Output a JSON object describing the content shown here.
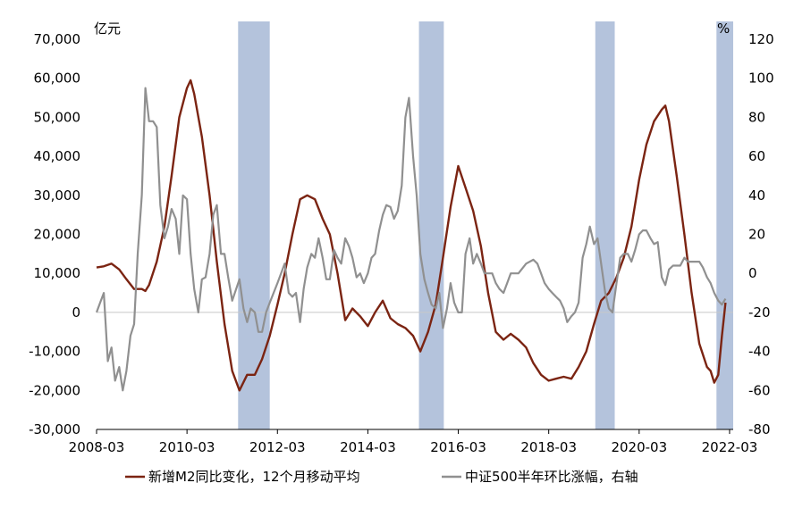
{
  "chart_data": {
    "type": "line",
    "title": "",
    "left_axis": {
      "unit": "亿元",
      "ylim": [
        -30000,
        70000
      ],
      "ticks": [
        70000,
        60000,
        50000,
        40000,
        30000,
        20000,
        10000,
        0,
        -10000,
        -20000,
        -30000
      ],
      "tick_labels": [
        "70,000",
        "60,000",
        "50,000",
        "40,000",
        "30,000",
        "20,000",
        "10,000",
        "0",
        "-10,000",
        "-20,000",
        "-30,000"
      ]
    },
    "right_axis": {
      "unit": "%",
      "ylim": [
        -80,
        120
      ],
      "ticks": [
        120,
        100,
        80,
        60,
        40,
        20,
        0,
        -20,
        -40,
        -60,
        -80
      ],
      "tick_labels": [
        "120",
        "100",
        "80",
        "60",
        "40",
        "20",
        "0",
        "-20",
        "-40",
        "-60",
        "-80"
      ]
    },
    "x_axis": {
      "xlim": [
        2008.17,
        2022.25
      ],
      "ticks": [
        2008.17,
        2010.17,
        2012.17,
        2014.17,
        2016.17,
        2018.17,
        2020.17,
        2022.17
      ],
      "tick_labels": [
        "2008-03",
        "2010-03",
        "2012-03",
        "2014-03",
        "2016-03",
        "2018-03",
        "2020-03",
        "2022-03"
      ]
    },
    "shaded_periods": [
      {
        "start": 2011.3,
        "end": 2012.0
      },
      {
        "start": 2015.3,
        "end": 2015.85
      },
      {
        "start": 2019.2,
        "end": 2019.63
      },
      {
        "start": 2021.88,
        "end": 2022.25
      }
    ],
    "series": [
      {
        "name": "新增M2同比变化，12个月移动平均",
        "axis": "left",
        "color": "#7b2412",
        "points": [
          [
            2008.17,
            11500
          ],
          [
            2008.33,
            11800
          ],
          [
            2008.5,
            12500
          ],
          [
            2008.67,
            11000
          ],
          [
            2008.83,
            8500
          ],
          [
            2009.0,
            6000
          ],
          [
            2009.17,
            6000
          ],
          [
            2009.25,
            5500
          ],
          [
            2009.33,
            7000
          ],
          [
            2009.5,
            13000
          ],
          [
            2009.67,
            22000
          ],
          [
            2009.83,
            35000
          ],
          [
            2010.0,
            50000
          ],
          [
            2010.17,
            57500
          ],
          [
            2010.25,
            59500
          ],
          [
            2010.33,
            56000
          ],
          [
            2010.5,
            45000
          ],
          [
            2010.67,
            30000
          ],
          [
            2010.83,
            13000
          ],
          [
            2011.0,
            -3000
          ],
          [
            2011.17,
            -15000
          ],
          [
            2011.33,
            -20000
          ],
          [
            2011.5,
            -16000
          ],
          [
            2011.67,
            -16000
          ],
          [
            2011.83,
            -12000
          ],
          [
            2012.0,
            -6000
          ],
          [
            2012.17,
            2000
          ],
          [
            2012.33,
            10000
          ],
          [
            2012.5,
            20000
          ],
          [
            2012.67,
            29000
          ],
          [
            2012.83,
            30000
          ],
          [
            2013.0,
            29000
          ],
          [
            2013.17,
            24000
          ],
          [
            2013.33,
            20000
          ],
          [
            2013.5,
            10000
          ],
          [
            2013.67,
            -2000
          ],
          [
            2013.83,
            1000
          ],
          [
            2014.0,
            -1000
          ],
          [
            2014.17,
            -3500
          ],
          [
            2014.33,
            0
          ],
          [
            2014.5,
            3000
          ],
          [
            2014.67,
            -1500
          ],
          [
            2014.83,
            -3000
          ],
          [
            2015.0,
            -4000
          ],
          [
            2015.17,
            -6000
          ],
          [
            2015.33,
            -10000
          ],
          [
            2015.5,
            -5000
          ],
          [
            2015.67,
            2000
          ],
          [
            2015.83,
            14000
          ],
          [
            2016.0,
            27000
          ],
          [
            2016.17,
            37500
          ],
          [
            2016.33,
            32000
          ],
          [
            2016.5,
            26000
          ],
          [
            2016.67,
            17000
          ],
          [
            2016.83,
            5000
          ],
          [
            2017.0,
            -5000
          ],
          [
            2017.17,
            -7000
          ],
          [
            2017.33,
            -5500
          ],
          [
            2017.5,
            -7000
          ],
          [
            2017.67,
            -9000
          ],
          [
            2017.83,
            -13000
          ],
          [
            2018.0,
            -16000
          ],
          [
            2018.17,
            -17500
          ],
          [
            2018.33,
            -17000
          ],
          [
            2018.5,
            -16500
          ],
          [
            2018.67,
            -17000
          ],
          [
            2018.83,
            -14000
          ],
          [
            2019.0,
            -10000
          ],
          [
            2019.17,
            -3000
          ],
          [
            2019.33,
            3000
          ],
          [
            2019.5,
            5000
          ],
          [
            2019.67,
            9000
          ],
          [
            2019.83,
            14000
          ],
          [
            2020.0,
            22000
          ],
          [
            2020.17,
            34000
          ],
          [
            2020.33,
            43000
          ],
          [
            2020.5,
            49000
          ],
          [
            2020.67,
            52000
          ],
          [
            2020.75,
            53000
          ],
          [
            2020.83,
            49000
          ],
          [
            2021.0,
            35000
          ],
          [
            2021.17,
            20000
          ],
          [
            2021.33,
            5000
          ],
          [
            2021.5,
            -8000
          ],
          [
            2021.67,
            -14000
          ],
          [
            2021.75,
            -15000
          ],
          [
            2021.83,
            -18000
          ],
          [
            2021.92,
            -16000
          ],
          [
            2022.0,
            -6000
          ],
          [
            2022.08,
            2500
          ]
        ]
      },
      {
        "name": "中证500半年环比涨幅，右轴",
        "axis": "right",
        "color": "#909090",
        "points": [
          [
            2008.17,
            -20
          ],
          [
            2008.25,
            -15
          ],
          [
            2008.33,
            -10
          ],
          [
            2008.42,
            -45
          ],
          [
            2008.5,
            -38
          ],
          [
            2008.58,
            -55
          ],
          [
            2008.67,
            -48
          ],
          [
            2008.75,
            -60
          ],
          [
            2008.83,
            -50
          ],
          [
            2008.92,
            -32
          ],
          [
            2009.0,
            -26
          ],
          [
            2009.08,
            10
          ],
          [
            2009.17,
            40
          ],
          [
            2009.25,
            95
          ],
          [
            2009.33,
            78
          ],
          [
            2009.42,
            78
          ],
          [
            2009.5,
            75
          ],
          [
            2009.58,
            35
          ],
          [
            2009.67,
            18
          ],
          [
            2009.75,
            24
          ],
          [
            2009.83,
            33
          ],
          [
            2009.92,
            28
          ],
          [
            2010.0,
            10
          ],
          [
            2010.08,
            40
          ],
          [
            2010.17,
            38
          ],
          [
            2010.25,
            10
          ],
          [
            2010.33,
            -8
          ],
          [
            2010.42,
            -20
          ],
          [
            2010.5,
            -3
          ],
          [
            2010.58,
            -2
          ],
          [
            2010.67,
            10
          ],
          [
            2010.75,
            30
          ],
          [
            2010.83,
            35
          ],
          [
            2010.92,
            10
          ],
          [
            2011.0,
            10
          ],
          [
            2011.08,
            -2
          ],
          [
            2011.17,
            -14
          ],
          [
            2011.33,
            -3
          ],
          [
            2011.42,
            -18
          ],
          [
            2011.5,
            -25
          ],
          [
            2011.58,
            -18
          ],
          [
            2011.67,
            -20
          ],
          [
            2011.75,
            -30
          ],
          [
            2011.83,
            -30
          ],
          [
            2011.92,
            -20
          ],
          [
            2012.0,
            -15
          ],
          [
            2012.17,
            -5
          ],
          [
            2012.33,
            5
          ],
          [
            2012.42,
            -10
          ],
          [
            2012.5,
            -12
          ],
          [
            2012.58,
            -10
          ],
          [
            2012.67,
            -25
          ],
          [
            2012.75,
            -8
          ],
          [
            2012.83,
            3
          ],
          [
            2012.92,
            10
          ],
          [
            2013.0,
            8
          ],
          [
            2013.08,
            18
          ],
          [
            2013.17,
            8
          ],
          [
            2013.25,
            -3
          ],
          [
            2013.33,
            -3
          ],
          [
            2013.42,
            12
          ],
          [
            2013.5,
            8
          ],
          [
            2013.58,
            5
          ],
          [
            2013.67,
            18
          ],
          [
            2013.75,
            14
          ],
          [
            2013.83,
            8
          ],
          [
            2013.92,
            -2
          ],
          [
            2014.0,
            0
          ],
          [
            2014.08,
            -5
          ],
          [
            2014.17,
            0
          ],
          [
            2014.25,
            8
          ],
          [
            2014.33,
            10
          ],
          [
            2014.42,
            22
          ],
          [
            2014.5,
            30
          ],
          [
            2014.58,
            35
          ],
          [
            2014.67,
            34
          ],
          [
            2014.75,
            28
          ],
          [
            2014.83,
            32
          ],
          [
            2014.92,
            45
          ],
          [
            2015.0,
            80
          ],
          [
            2015.08,
            90
          ],
          [
            2015.17,
            60
          ],
          [
            2015.25,
            40
          ],
          [
            2015.33,
            10
          ],
          [
            2015.42,
            -3
          ],
          [
            2015.5,
            -10
          ],
          [
            2015.58,
            -16
          ],
          [
            2015.67,
            -18
          ],
          [
            2015.75,
            -10
          ],
          [
            2015.83,
            -28
          ],
          [
            2015.92,
            -18
          ],
          [
            2016.0,
            -5
          ],
          [
            2016.08,
            -15
          ],
          [
            2016.17,
            -20
          ],
          [
            2016.25,
            -20
          ],
          [
            2016.33,
            10
          ],
          [
            2016.42,
            18
          ],
          [
            2016.5,
            5
          ],
          [
            2016.58,
            10
          ],
          [
            2016.67,
            5
          ],
          [
            2016.75,
            0
          ],
          [
            2016.83,
            0
          ],
          [
            2016.92,
            0
          ],
          [
            2017.0,
            -5
          ],
          [
            2017.08,
            -8
          ],
          [
            2017.17,
            -10
          ],
          [
            2017.25,
            -5
          ],
          [
            2017.33,
            0
          ],
          [
            2017.5,
            0
          ],
          [
            2017.67,
            5
          ],
          [
            2017.83,
            7
          ],
          [
            2017.92,
            5
          ],
          [
            2018.0,
            0
          ],
          [
            2018.08,
            -5
          ],
          [
            2018.17,
            -8
          ],
          [
            2018.25,
            -10
          ],
          [
            2018.33,
            -12
          ],
          [
            2018.42,
            -14
          ],
          [
            2018.5,
            -18
          ],
          [
            2018.58,
            -25
          ],
          [
            2018.67,
            -22
          ],
          [
            2018.75,
            -20
          ],
          [
            2018.83,
            -15
          ],
          [
            2018.92,
            8
          ],
          [
            2019.0,
            15
          ],
          [
            2019.08,
            24
          ],
          [
            2019.17,
            15
          ],
          [
            2019.25,
            18
          ],
          [
            2019.33,
            5
          ],
          [
            2019.42,
            -10
          ],
          [
            2019.5,
            -18
          ],
          [
            2019.58,
            -20
          ],
          [
            2019.67,
            -5
          ],
          [
            2019.75,
            8
          ],
          [
            2019.83,
            10
          ],
          [
            2019.92,
            10
          ],
          [
            2020.0,
            6
          ],
          [
            2020.08,
            12
          ],
          [
            2020.17,
            20
          ],
          [
            2020.25,
            22
          ],
          [
            2020.33,
            22
          ],
          [
            2020.42,
            18
          ],
          [
            2020.5,
            15
          ],
          [
            2020.58,
            16
          ],
          [
            2020.67,
            -2
          ],
          [
            2020.75,
            -6
          ],
          [
            2020.83,
            2
          ],
          [
            2020.92,
            4
          ],
          [
            2021.0,
            4
          ],
          [
            2021.08,
            4
          ],
          [
            2021.17,
            8
          ],
          [
            2021.25,
            6
          ],
          [
            2021.33,
            6
          ],
          [
            2021.42,
            6
          ],
          [
            2021.5,
            6
          ],
          [
            2021.58,
            3
          ],
          [
            2021.67,
            -2
          ],
          [
            2021.75,
            -5
          ],
          [
            2021.83,
            -10
          ],
          [
            2021.92,
            -14
          ],
          [
            2022.0,
            -16
          ],
          [
            2022.08,
            -13
          ]
        ]
      }
    ],
    "legend": [
      "新增M2同比变化，12个月移动平均",
      "中证500半年环比涨幅，右轴"
    ],
    "legend_position": "bottom-center",
    "colors": {
      "shade": "#b4c3dc",
      "zero_line": "#c8c8c8",
      "axis": "#000000"
    }
  }
}
